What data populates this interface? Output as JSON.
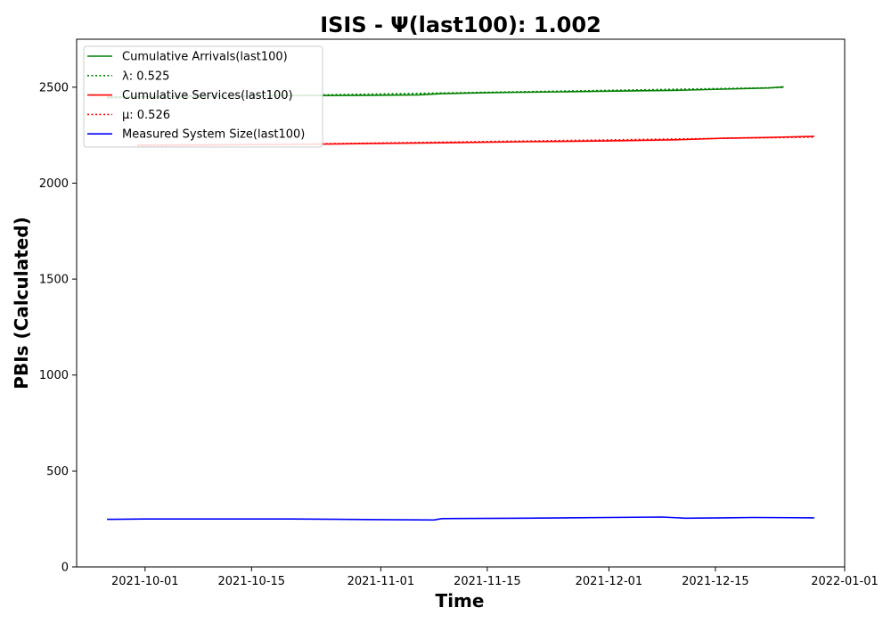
{
  "chart_data": {
    "type": "line",
    "title": "ISIS -  Ψ(last100): 1.002",
    "xlabel": "Time",
    "ylabel": "PBIs (Calculated)",
    "x_type": "date",
    "xlim": [
      "2021-09-22",
      "2022-01-01"
    ],
    "ylim": [
      0,
      2750
    ],
    "x_ticks": [
      "2021-10-01",
      "2021-10-15",
      "2021-11-01",
      "2021-11-15",
      "2021-12-01",
      "2021-12-15",
      "2022-01-01"
    ],
    "y_ticks": [
      0,
      500,
      1000,
      1500,
      2000,
      2500
    ],
    "grid": false,
    "legend_position": "upper-left",
    "series": [
      {
        "name": "Cumulative Arrivals(last100)",
        "color": "#008000",
        "style": "solid",
        "points": [
          [
            "2021-09-26",
            2448
          ],
          [
            "2021-10-01",
            2452
          ],
          [
            "2021-10-10",
            2454
          ],
          [
            "2021-10-20",
            2456
          ],
          [
            "2021-10-30",
            2458
          ],
          [
            "2021-11-06",
            2460
          ],
          [
            "2021-11-09",
            2466
          ],
          [
            "2021-11-16",
            2472
          ],
          [
            "2021-11-25",
            2476
          ],
          [
            "2021-12-03",
            2480
          ],
          [
            "2021-12-10",
            2484
          ],
          [
            "2021-12-16",
            2490
          ],
          [
            "2021-12-22",
            2496
          ],
          [
            "2021-12-24",
            2502
          ]
        ]
      },
      {
        "name": "λ: 0.525",
        "color": "#008000",
        "style": "dotted",
        "points": [
          [
            "2021-09-26",
            2442
          ],
          [
            "2021-12-24",
            2498
          ]
        ]
      },
      {
        "name": "Cumulative Services(last100)",
        "color": "#ff0000",
        "style": "solid",
        "points": [
          [
            "2021-09-30",
            2198
          ],
          [
            "2021-10-10",
            2200
          ],
          [
            "2021-10-20",
            2202
          ],
          [
            "2021-10-30",
            2206
          ],
          [
            "2021-11-09",
            2210
          ],
          [
            "2021-11-20",
            2216
          ],
          [
            "2021-12-01",
            2220
          ],
          [
            "2021-12-10",
            2226
          ],
          [
            "2021-12-16",
            2234
          ],
          [
            "2021-12-22",
            2238
          ],
          [
            "2021-12-28",
            2244
          ]
        ]
      },
      {
        "name": "μ: 0.526",
        "color": "#ff0000",
        "style": "dotted",
        "points": [
          [
            "2021-09-30",
            2192
          ],
          [
            "2021-12-28",
            2240
          ]
        ]
      },
      {
        "name": "Measured System Size(last100)",
        "color": "#0000ff",
        "style": "solid",
        "points": [
          [
            "2021-09-26",
            248
          ],
          [
            "2021-10-01",
            250
          ],
          [
            "2021-10-10",
            250
          ],
          [
            "2021-10-20",
            250
          ],
          [
            "2021-10-30",
            247
          ],
          [
            "2021-11-08",
            245
          ],
          [
            "2021-11-09",
            252
          ],
          [
            "2021-11-20",
            254
          ],
          [
            "2021-12-01",
            258
          ],
          [
            "2021-12-08",
            260
          ],
          [
            "2021-12-11",
            254
          ],
          [
            "2021-12-16",
            256
          ],
          [
            "2021-12-20",
            258
          ],
          [
            "2021-12-28",
            256
          ]
        ]
      }
    ]
  }
}
